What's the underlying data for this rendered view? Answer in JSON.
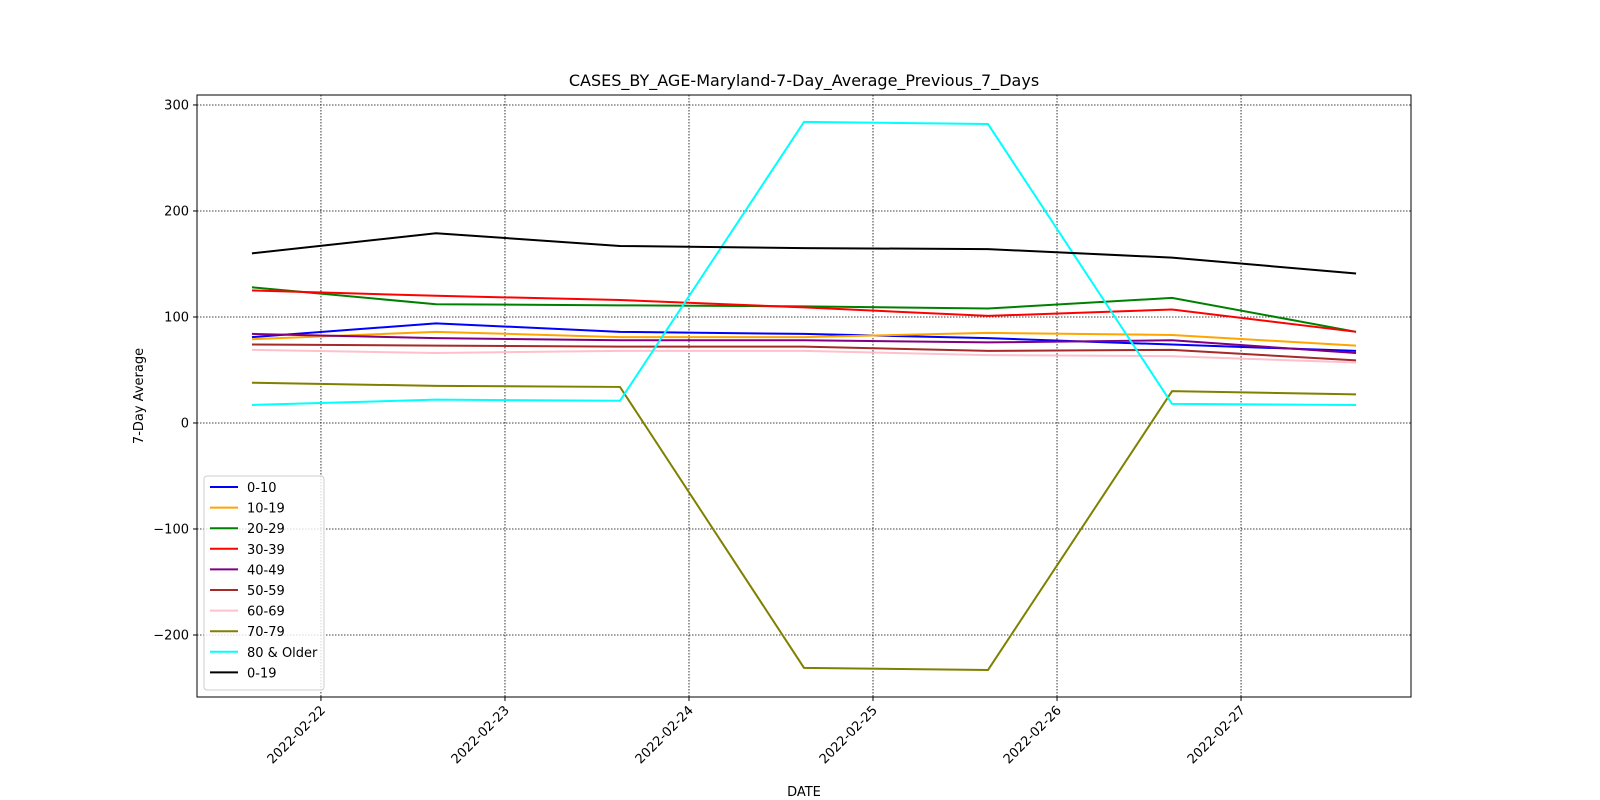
{
  "chart_data": {
    "type": "line",
    "title": "CASES_BY_AGE-Maryland-7-Day_Average_Previous_7_Days",
    "x_label": "DATE",
    "y_label": "7-Day Average",
    "x": [
      "2022-02-21T15:00",
      "2022-02-22T15:00",
      "2022-02-23T15:00",
      "2022-02-24T15:00",
      "2022-02-25T15:00",
      "2022-02-26T15:00",
      "2022-02-27T15:00"
    ],
    "xlim": [
      "2022-02-21T07:50",
      "2022-02-27T22:10"
    ],
    "xticks": [
      "2022-02-22",
      "2022-02-23",
      "2022-02-24",
      "2022-02-25",
      "2022-02-26",
      "2022-02-27"
    ],
    "ylim": [
      -258.5,
      309.4
    ],
    "yticks": [
      {
        "value": -200,
        "label": "−200"
      },
      {
        "value": -100,
        "label": "−100"
      },
      0,
      100,
      200,
      300
    ],
    "grid": true,
    "legend": "lower left",
    "series": [
      {
        "name": "0-10",
        "color": "#0000ff",
        "values": [
          81,
          94,
          86,
          84,
          80,
          74,
          68
        ]
      },
      {
        "name": "10-19",
        "color": "#ffa500",
        "values": [
          79,
          86,
          81,
          81,
          85,
          83,
          73
        ]
      },
      {
        "name": "20-29",
        "color": "#008000",
        "values": [
          128,
          112,
          111,
          110,
          108,
          118,
          86
        ]
      },
      {
        "name": "30-39",
        "color": "#ff0000",
        "values": [
          125,
          120,
          116,
          109,
          101,
          107,
          86
        ]
      },
      {
        "name": "40-49",
        "color": "#800080",
        "values": [
          84,
          80,
          78,
          78,
          76,
          78,
          66
        ]
      },
      {
        "name": "50-59",
        "color": "#a52a2a",
        "values": [
          74,
          73,
          72,
          72,
          68,
          69,
          59
        ]
      },
      {
        "name": "60-69",
        "color": "#ffc0cb",
        "values": [
          69,
          66,
          68,
          68,
          64,
          63,
          57
        ]
      },
      {
        "name": "70-79",
        "color": "#808000",
        "values": [
          38,
          35,
          34,
          -231,
          -233,
          30,
          27
        ]
      },
      {
        "name": "80 & Older",
        "color": "#00ffff",
        "values": [
          17,
          22,
          21,
          284,
          282,
          18,
          17
        ]
      },
      {
        "name": "0-19",
        "color": "#000000",
        "values": [
          160,
          179,
          167,
          165,
          164,
          156,
          141
        ]
      }
    ]
  }
}
